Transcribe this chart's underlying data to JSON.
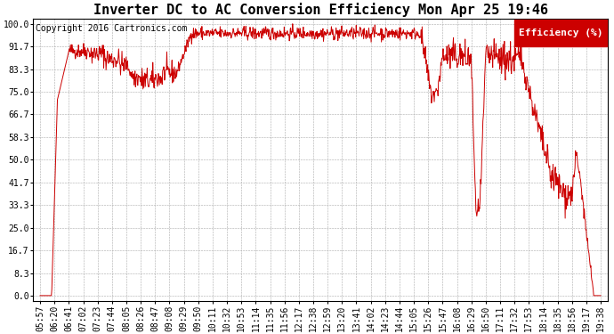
{
  "title": "Inverter DC to AC Conversion Efficiency Mon Apr 25 19:46",
  "copyright": "Copyright 2016 Cartronics.com",
  "legend_label": "Efficiency (%)",
  "legend_bg": "#cc0000",
  "legend_text_color": "#ffffff",
  "line_color": "#cc0000",
  "bg_color": "#ffffff",
  "plot_bg_color": "#ffffff",
  "grid_color": "#aaaaaa",
  "yticks": [
    0.0,
    8.3,
    16.7,
    25.0,
    33.3,
    41.7,
    50.0,
    58.3,
    66.7,
    75.0,
    83.3,
    91.7,
    100.0
  ],
  "ylim": [
    -2,
    102
  ],
  "x_tick_labels": [
    "05:57",
    "06:20",
    "06:41",
    "07:02",
    "07:23",
    "07:44",
    "08:05",
    "08:26",
    "08:47",
    "09:08",
    "09:29",
    "09:50",
    "10:11",
    "10:32",
    "10:53",
    "11:14",
    "11:35",
    "11:56",
    "12:17",
    "12:38",
    "12:59",
    "13:20",
    "13:41",
    "14:02",
    "14:23",
    "14:44",
    "15:05",
    "15:26",
    "15:47",
    "16:08",
    "16:29",
    "16:50",
    "17:11",
    "17:32",
    "17:53",
    "18:14",
    "18:35",
    "18:56",
    "19:17",
    "19:38"
  ],
  "title_fontsize": 11,
  "copyright_fontsize": 7,
  "tick_fontsize": 7,
  "legend_fontsize": 8
}
